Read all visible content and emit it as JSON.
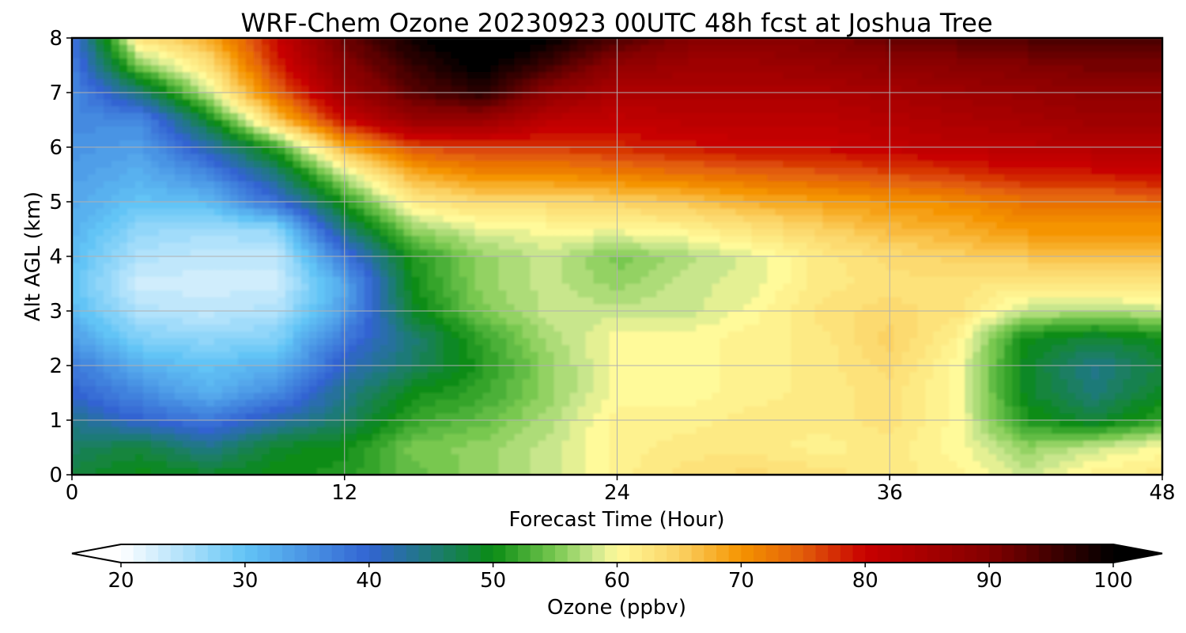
{
  "chart_data": {
    "type": "heatmap",
    "title": "WRF-Chem Ozone  20230923 00UTC 48h fcst at Joshua Tree",
    "xlabel": "Forecast Time (Hour)",
    "ylabel": "Alt AGL (km)",
    "xlim": [
      0,
      48
    ],
    "ylim": [
      0,
      8
    ],
    "x_ticks": [
      0,
      12,
      24,
      36,
      48
    ],
    "y_ticks": [
      0,
      1,
      2,
      3,
      4,
      5,
      6,
      7,
      8
    ],
    "grid": true,
    "x": [
      0,
      3,
      6,
      9,
      12,
      15,
      18,
      21,
      24,
      27,
      30,
      33,
      36,
      39,
      42,
      45,
      48
    ],
    "y": [
      0,
      0.5,
      1,
      1.5,
      2,
      2.5,
      3,
      3.5,
      4,
      4.5,
      5,
      5.5,
      6,
      6.5,
      7,
      7.5,
      8
    ],
    "z": [
      [
        48,
        50,
        49,
        50,
        51,
        54,
        56,
        58,
        61,
        63,
        64,
        63,
        62,
        61,
        58,
        61,
        62
      ],
      [
        46,
        48,
        44,
        49,
        50,
        55,
        56,
        58,
        61,
        62,
        62,
        61,
        62,
        60,
        56,
        58,
        60
      ],
      [
        44,
        40,
        38,
        42,
        46,
        52,
        54,
        57,
        61,
        61,
        62,
        62,
        63,
        60,
        51,
        48,
        52
      ],
      [
        40,
        36,
        32,
        36,
        44,
        50,
        52,
        56,
        60,
        60,
        61,
        62,
        63,
        60,
        49,
        45,
        49
      ],
      [
        38,
        32,
        30,
        32,
        41,
        46,
        51,
        56,
        60,
        60,
        61,
        62,
        64,
        60,
        49,
        44,
        48
      ],
      [
        34,
        28,
        27,
        28,
        38,
        45,
        52,
        57,
        60,
        60,
        61,
        62,
        65,
        61,
        50,
        48,
        50
      ],
      [
        31,
        25,
        24,
        25,
        34,
        49,
        55,
        58,
        58,
        58,
        60,
        63,
        64,
        63,
        58,
        57,
        58
      ],
      [
        30,
        23,
        23,
        23,
        33,
        50,
        56,
        58,
        56,
        58,
        59,
        62,
        63,
        63,
        62,
        63,
        63
      ],
      [
        31,
        25,
        24,
        24,
        38,
        51,
        56,
        58,
        55,
        57,
        59,
        62,
        64,
        65,
        66,
        66,
        67
      ],
      [
        32,
        27,
        26,
        27,
        45,
        56,
        59,
        60,
        60,
        61,
        63,
        65,
        67,
        68,
        70,
        70,
        70
      ],
      [
        33,
        30,
        31,
        39,
        51,
        62,
        64,
        64,
        65,
        66,
        68,
        69,
        70,
        71,
        73,
        73,
        74
      ],
      [
        34,
        32,
        36,
        45,
        58,
        68,
        71,
        71,
        72,
        73,
        74,
        75,
        76,
        77,
        79,
        79,
        80
      ],
      [
        35,
        34,
        42,
        52,
        68,
        76,
        77,
        77,
        78,
        79,
        80,
        80,
        81,
        82,
        82,
        83,
        83
      ],
      [
        36,
        36,
        49,
        66,
        80,
        87,
        87,
        82,
        81,
        82,
        82,
        82,
        83,
        84,
        85,
        86,
        86
      ],
      [
        36,
        45,
        58,
        74,
        86,
        93,
        97,
        88,
        84,
        84,
        84,
        84,
        85,
        86,
        87,
        88,
        88
      ],
      [
        37,
        55,
        63,
        78,
        89,
        96,
        101,
        95,
        88,
        86,
        86,
        87,
        88,
        89,
        90,
        91,
        91
      ],
      [
        38,
        63,
        68,
        80,
        92,
        99,
        103,
        100,
        94,
        90,
        89,
        90,
        92,
        93,
        94,
        94,
        94
      ]
    ],
    "colorbar": {
      "label": "Ozone  (ppbv)",
      "min": 20,
      "max": 100,
      "ticks": [
        20,
        30,
        40,
        50,
        60,
        70,
        80,
        90,
        100
      ],
      "extend": "both",
      "colormap_stops": [
        {
          "v": 20,
          "color": "#ffffff"
        },
        {
          "v": 30,
          "color": "#62c4f6"
        },
        {
          "v": 40,
          "color": "#3264d2"
        },
        {
          "v": 45,
          "color": "#1e7a78"
        },
        {
          "v": 50,
          "color": "#0a8c14"
        },
        {
          "v": 55,
          "color": "#78c850"
        },
        {
          "v": 58,
          "color": "#c8e68c"
        },
        {
          "v": 60,
          "color": "#fffa9a"
        },
        {
          "v": 65,
          "color": "#fbd264"
        },
        {
          "v": 70,
          "color": "#f59400"
        },
        {
          "v": 75,
          "color": "#e25c0a"
        },
        {
          "v": 80,
          "color": "#c80000"
        },
        {
          "v": 90,
          "color": "#820000"
        },
        {
          "v": 100,
          "color": "#000000"
        }
      ]
    }
  }
}
